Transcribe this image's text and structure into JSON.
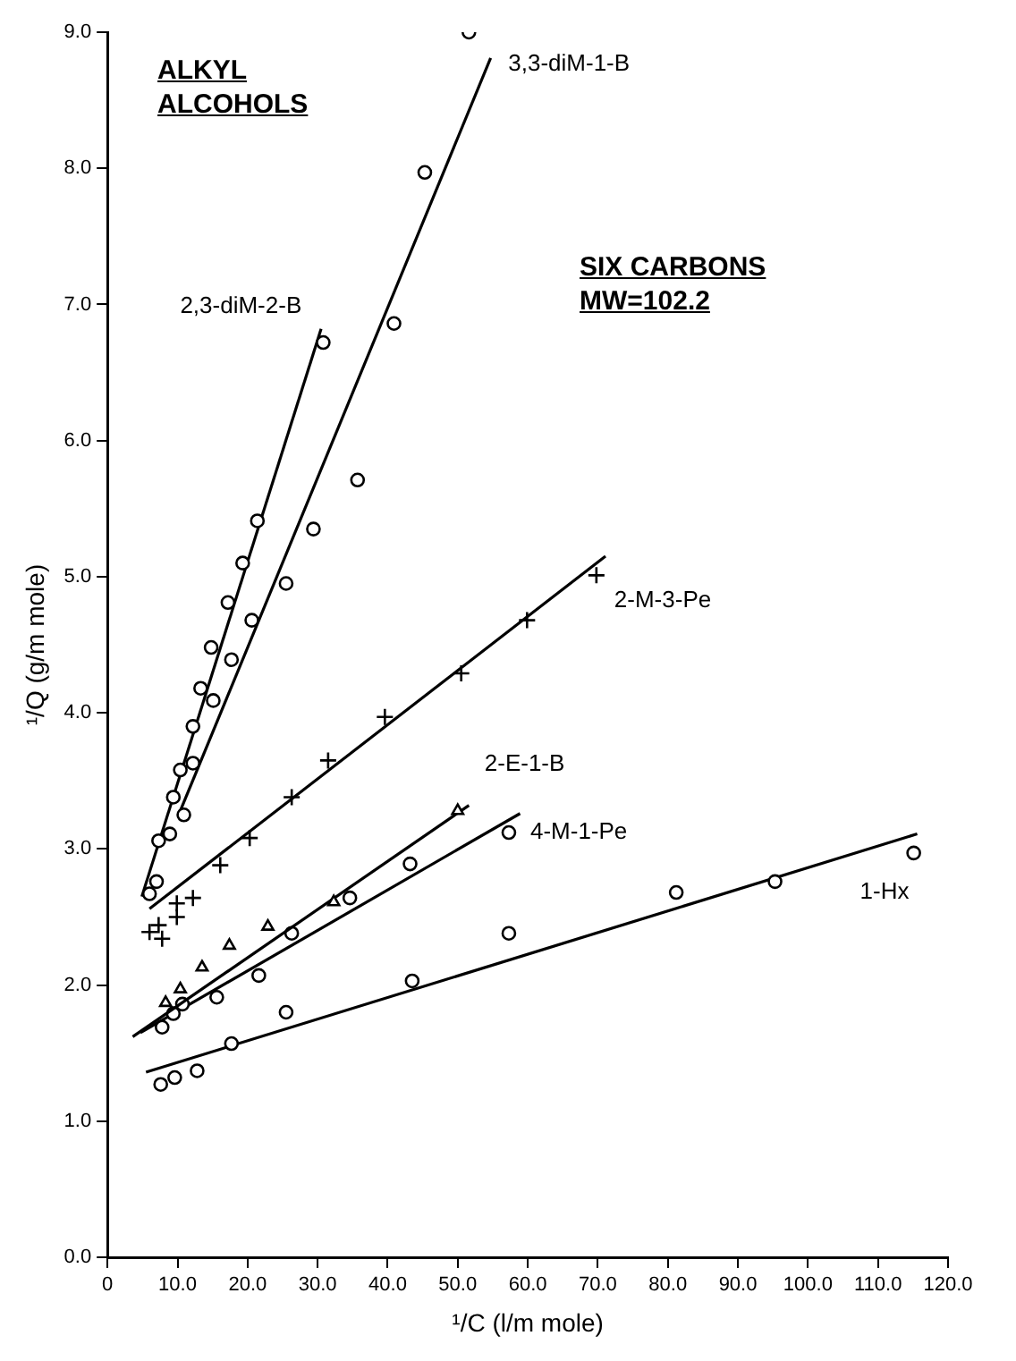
{
  "chart_data": {
    "type": "scatter",
    "xlabel": "¹/C (l/m mole)",
    "ylabel": "¹/Q (g/m mole)",
    "xlim": [
      0,
      120
    ],
    "xticks": [
      0,
      {
        "value": 10,
        "label": "10.0"
      },
      {
        "value": 20,
        "label": "20.0"
      },
      {
        "value": 30,
        "label": "30.0"
      },
      {
        "value": 40,
        "label": "40.0"
      },
      {
        "value": 50,
        "label": "50.0"
      },
      {
        "value": 60,
        "label": "60.0"
      },
      {
        "value": 70,
        "label": "70.0"
      },
      {
        "value": 80,
        "label": "80.0"
      },
      {
        "value": 90,
        "label": "90.0"
      },
      {
        "value": 100,
        "label": "100.0"
      },
      {
        "value": 110,
        "label": "110.0"
      },
      {
        "value": 120,
        "label": "120.0"
      }
    ],
    "ylim": [
      0,
      9
    ],
    "yticks": [
      {
        "value": 0,
        "label": "0.0"
      },
      {
        "value": 1,
        "label": "1.0"
      },
      {
        "value": 2,
        "label": "2.0"
      },
      {
        "value": 3,
        "label": "3.0"
      },
      {
        "value": 4,
        "label": "4.0"
      },
      {
        "value": 5,
        "label": "5.0"
      },
      {
        "value": 6,
        "label": "6.0"
      },
      {
        "value": 7,
        "label": "7.0"
      },
      {
        "value": 8,
        "label": "8.0"
      },
      {
        "value": 9,
        "label": "9.0"
      }
    ],
    "grid": false,
    "legend": false,
    "series": [
      {
        "type": "scatter",
        "name": "3,3-diM-1-B",
        "marker": "circle",
        "color": "#000000",
        "x": [
          51.6,
          45.3,
          40.9,
          35.7,
          29.4,
          25.5,
          20.6,
          17.7,
          15.1,
          12.2,
          10.9
        ],
        "values": [
          9.0,
          7.97,
          6.86,
          5.71,
          5.35,
          4.95,
          4.68,
          4.39,
          4.09,
          3.63,
          3.25
        ]
      },
      {
        "type": "line",
        "color": "#000000",
        "x": [
          10.4,
          54.7
        ],
        "values": [
          3.28,
          8.81
        ]
      },
      {
        "type": "scatter",
        "name": "2,3-diM-2-B",
        "marker": "circle",
        "color": "#000000",
        "x": [
          30.8,
          21.4,
          19.3,
          17.2,
          14.8,
          13.3,
          12.2,
          10.4,
          9.4,
          8.9,
          7.3,
          7.0,
          6.0
        ],
        "values": [
          6.72,
          5.41,
          5.1,
          4.81,
          4.48,
          4.18,
          3.9,
          3.58,
          3.38,
          3.11,
          3.06,
          2.76,
          2.67
        ]
      },
      {
        "type": "line",
        "color": "#000000",
        "x": [
          4.9,
          30.5
        ],
        "values": [
          2.65,
          6.82
        ]
      },
      {
        "type": "scatter",
        "name": "2-M-3-Pe",
        "marker": "cross",
        "color": "#000000",
        "x": [
          69.8,
          59.9,
          50.5,
          39.6,
          31.5,
          26.3,
          20.3,
          16.1,
          12.2,
          9.9,
          9.9,
          7.3,
          6.0,
          7.8
        ],
        "values": [
          5.01,
          4.68,
          4.29,
          3.97,
          3.65,
          3.38,
          3.08,
          2.88,
          2.64,
          2.6,
          2.5,
          2.44,
          2.39,
          2.34
        ]
      },
      {
        "type": "line",
        "color": "#000000",
        "x": [
          6.0,
          71.1
        ],
        "values": [
          2.56,
          5.15
        ]
      },
      {
        "type": "scatter",
        "name": "2-E-1-B",
        "marker": "triangle",
        "color": "#000000",
        "x": [
          50.0,
          32.3,
          22.9,
          17.4,
          13.5,
          10.4,
          8.3
        ],
        "values": [
          3.28,
          2.61,
          2.43,
          2.29,
          2.13,
          1.97,
          1.87
        ]
      },
      {
        "type": "line",
        "color": "#000000",
        "x": [
          3.6,
          51.6
        ],
        "values": [
          1.62,
          3.32
        ]
      },
      {
        "type": "scatter",
        "name": "4-M-1-Pe",
        "marker": "circle",
        "color": "#000000",
        "x": [
          57.3,
          43.2,
          34.6,
          26.3,
          21.6,
          15.6,
          10.7,
          9.4,
          7.8
        ],
        "values": [
          3.12,
          2.89,
          2.64,
          2.38,
          2.07,
          1.91,
          1.86,
          1.79,
          1.69
        ]
      },
      {
        "type": "line",
        "color": "#000000",
        "x": [
          4.7,
          58.9
        ],
        "values": [
          1.65,
          3.26
        ]
      },
      {
        "type": "scatter",
        "name": "1-Hx",
        "marker": "circle",
        "color": "#000000",
        "x": [
          115.1,
          95.3,
          81.2,
          57.3,
          43.5,
          25.5,
          17.7,
          12.8,
          9.6,
          7.6
        ],
        "values": [
          2.97,
          2.76,
          2.68,
          2.38,
          2.03,
          1.8,
          1.57,
          1.37,
          1.32,
          1.27
        ]
      },
      {
        "type": "line",
        "color": "#000000",
        "x": [
          5.5,
          115.6
        ],
        "values": [
          1.36,
          3.11
        ]
      }
    ],
    "annotations": [
      "ALKYL ALCOHOLS",
      "SIX CARBONS",
      "MW=102.2"
    ]
  }
}
